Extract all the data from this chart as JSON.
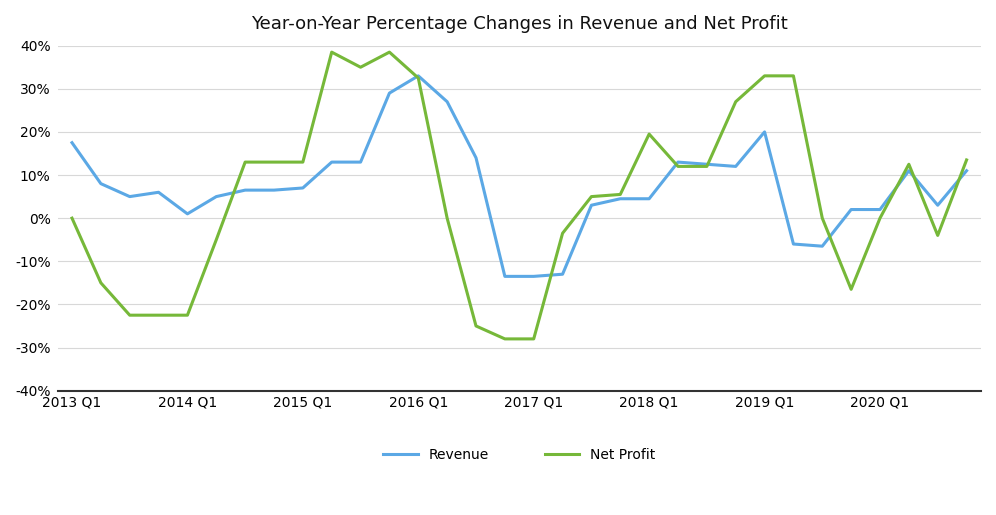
{
  "title": "Year-on-Year Percentage Changes in Revenue and Net Profit",
  "revenue_color": "#5ba8e5",
  "profit_color": "#76b839",
  "background_color": "#ffffff",
  "grid_color": "#d8d8d8",
  "ylim": [
    -40,
    40
  ],
  "yticks": [
    -40,
    -30,
    -20,
    -10,
    0,
    10,
    20,
    30,
    40
  ],
  "legend_labels": [
    "Revenue",
    "Net Profit"
  ],
  "x_tick_labels": [
    "2013 Q1",
    "2014 Q1",
    "2015 Q1",
    "2016 Q1",
    "2017 Q1",
    "2018 Q1",
    "2019 Q1",
    "2020 Q1"
  ],
  "revenue": [
    17.5,
    8.0,
    5.0,
    6.0,
    1.0,
    5.0,
    6.5,
    6.5,
    7.0,
    13.0,
    13.0,
    29.0,
    33.0,
    27.0,
    14.0,
    -13.5,
    -13.5,
    -13.0,
    3.0,
    4.5,
    4.5,
    13.0,
    12.5,
    12.0,
    20.0,
    -6.0,
    -6.5,
    2.0,
    2.0,
    11.0,
    3.0,
    11.0
  ],
  "net_profit": [
    0.0,
    -15.0,
    -22.5,
    -22.5,
    -22.5,
    -5.0,
    13.0,
    13.0,
    13.0,
    38.5,
    35.0,
    38.5,
    32.5,
    0.0,
    -25.0,
    -28.0,
    -28.0,
    -3.5,
    5.0,
    5.5,
    19.5,
    12.0,
    12.0,
    27.0,
    33.0,
    33.0,
    0.0,
    -16.5,
    0.0,
    12.5,
    -4.0,
    13.5
  ]
}
